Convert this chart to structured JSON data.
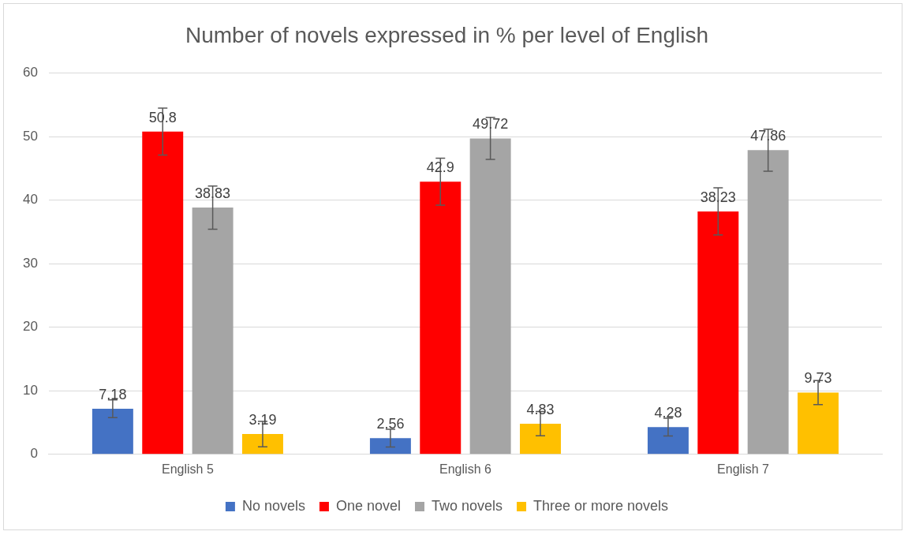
{
  "chart_data": {
    "type": "bar",
    "title": "Number of novels expressed in % per level of English",
    "categories": [
      "English 5",
      "English 6",
      "English 7"
    ],
    "series": [
      {
        "name": "No novels",
        "color": "#4472c4",
        "values": [
          7.18,
          2.56,
          4.28
        ],
        "errors": [
          1.4,
          1.4,
          1.4
        ]
      },
      {
        "name": "One novel",
        "color": "#ff0000",
        "values": [
          50.8,
          42.9,
          38.23
        ],
        "errors": [
          3.7,
          3.7,
          3.7
        ]
      },
      {
        "name": "Two novels",
        "color": "#a5a5a5",
        "values": [
          38.83,
          49.72,
          47.86
        ],
        "errors": [
          3.4,
          3.3,
          3.3
        ]
      },
      {
        "name": "Three or more novels",
        "color": "#ffc000",
        "values": [
          3.19,
          4.83,
          9.73
        ],
        "errors": [
          2.0,
          1.9,
          1.9
        ]
      }
    ],
    "ylim": [
      0,
      60
    ],
    "yticks": [
      0,
      10,
      20,
      30,
      40,
      50,
      60
    ],
    "grid": "y",
    "legend": "bottom",
    "data_labels": true
  }
}
